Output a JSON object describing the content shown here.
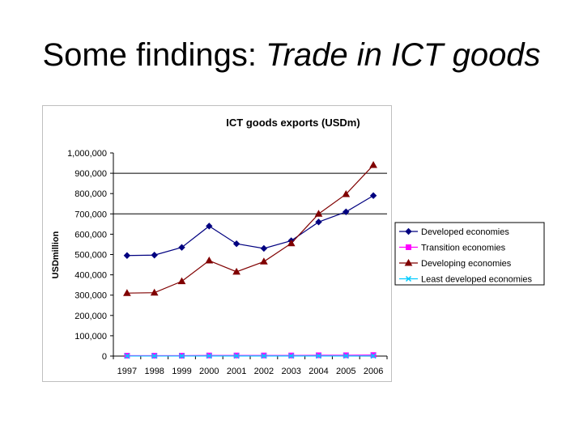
{
  "slide": {
    "title_plain": "Some findings: ",
    "title_italic": "Trade in ICT goods"
  },
  "chart_data": {
    "type": "line",
    "title": "ICT goods exports (USDm)",
    "ylabel": "USDmillion",
    "xlabel": "",
    "x": [
      "1997",
      "1998",
      "1999",
      "2000",
      "2001",
      "2002",
      "2003",
      "2004",
      "2005",
      "2006"
    ],
    "yticks": [
      "0",
      "100,000",
      "200,000",
      "300,000",
      "400,000",
      "500,000",
      "600,000",
      "700,000",
      "800,000",
      "900,000",
      "1,000,000"
    ],
    "ylim": [
      0,
      1000000
    ],
    "gridlines_at": [
      700000,
      900000
    ],
    "legend_position": "right",
    "series": [
      {
        "name": "Developed economies",
        "color": "#000080",
        "marker": "diamond",
        "values": [
          495000,
          497000,
          535000,
          640000,
          553000,
          530000,
          568000,
          660000,
          710000,
          790000
        ]
      },
      {
        "name": "Transition economies",
        "color": "#ff00ff",
        "marker": "square",
        "values": [
          2000,
          2000,
          2000,
          3000,
          3000,
          3000,
          3000,
          4000,
          4000,
          5000
        ]
      },
      {
        "name": "Developing economies",
        "color": "#800000",
        "marker": "triangle",
        "values": [
          310000,
          312000,
          368000,
          470000,
          415000,
          465000,
          555000,
          700000,
          797000,
          940000
        ]
      },
      {
        "name": "Least developed economies",
        "color": "#00ccff",
        "marker": "x",
        "values": [
          300,
          300,
          300,
          400,
          400,
          400,
          500,
          500,
          600,
          700
        ]
      }
    ]
  }
}
